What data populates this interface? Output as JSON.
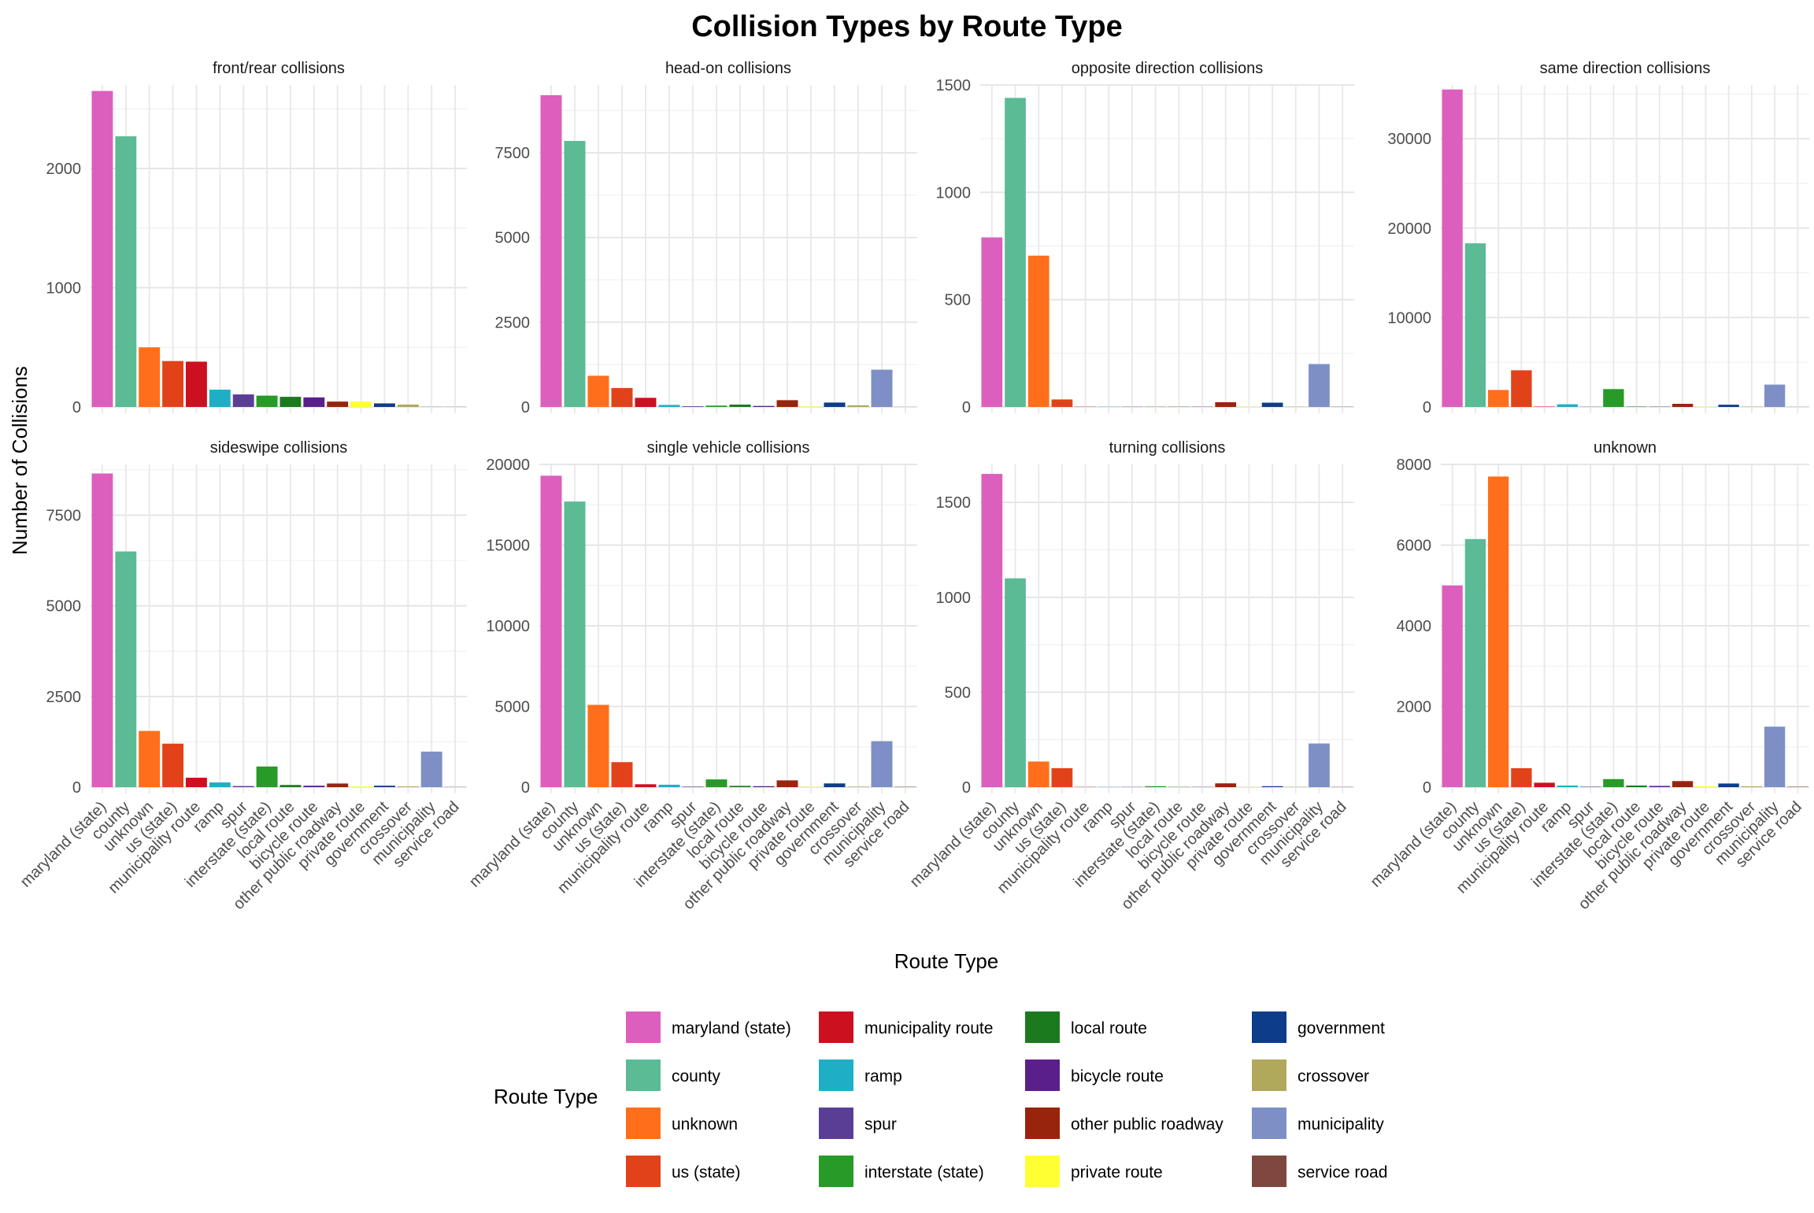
{
  "chart_data": {
    "type": "bar",
    "title": "Collision Types by Route Type",
    "xlabel": "Route Type",
    "ylabel": "Number of Collisions",
    "legend_title": "Route Type",
    "legend_position": "bottom",
    "grid": true,
    "categories": [
      "maryland (state)",
      "county",
      "unknown",
      "us (state)",
      "municipality route",
      "ramp",
      "spur",
      "interstate (state)",
      "local route",
      "bicycle route",
      "other public roadway",
      "private route",
      "government",
      "crossover",
      "municipality",
      "service road"
    ],
    "colors": [
      "#DC5FBD",
      "#5ABB95",
      "#FF6E1A",
      "#E1421A",
      "#CC1020",
      "#1EAFC6",
      "#5A3E96",
      "#279A27",
      "#1B7A1D",
      "#5A1F8A",
      "#98240C",
      "#FFFF33",
      "#0D3D8A",
      "#B0A85A",
      "#7D8FC5",
      "#7E4840"
    ],
    "panels": [
      {
        "name": "front/rear collisions",
        "ylim": [
          0,
          2700
        ],
        "ticks": [
          0,
          1000,
          2000
        ],
        "values": [
          2650,
          2270,
          500,
          385,
          380,
          145,
          105,
          95,
          85,
          80,
          45,
          45,
          30,
          20,
          2,
          1
        ]
      },
      {
        "name": "head-on collisions",
        "ylim": [
          0,
          9500
        ],
        "ticks": [
          0,
          2500,
          5000,
          7500
        ],
        "values": [
          9200,
          7850,
          920,
          560,
          270,
          60,
          20,
          40,
          70,
          30,
          200,
          10,
          130,
          50,
          1100,
          2
        ]
      },
      {
        "name": "opposite direction collisions",
        "ylim": [
          0,
          1500
        ],
        "ticks": [
          0,
          500,
          1000,
          1500
        ],
        "values": [
          790,
          1440,
          705,
          35,
          1,
          1,
          1,
          1,
          1,
          1,
          22,
          1,
          20,
          1,
          200,
          1
        ]
      },
      {
        "name": "same direction collisions",
        "ylim": [
          0,
          36000
        ],
        "ticks": [
          0,
          10000,
          20000,
          30000
        ],
        "values": [
          35500,
          18300,
          1900,
          4100,
          40,
          300,
          20,
          2000,
          40,
          30,
          350,
          20,
          250,
          30,
          2500,
          10
        ]
      },
      {
        "name": "sideswipe collisions",
        "ylim": [
          0,
          8900
        ],
        "ticks": [
          0,
          2500,
          5000,
          7500
        ],
        "values": [
          8650,
          6500,
          1550,
          1200,
          260,
          130,
          30,
          570,
          60,
          40,
          100,
          20,
          40,
          20,
          980,
          5
        ]
      },
      {
        "name": "single vehicle collisions",
        "ylim": [
          0,
          20000
        ],
        "ticks": [
          0,
          5000,
          10000,
          15000,
          20000
        ],
        "values": [
          19300,
          17700,
          5100,
          1550,
          180,
          150,
          30,
          480,
          80,
          60,
          420,
          20,
          230,
          30,
          2850,
          20
        ]
      },
      {
        "name": "turning collisions",
        "ylim": [
          0,
          1700
        ],
        "ticks": [
          0,
          500,
          1000,
          1500
        ],
        "values": [
          1650,
          1100,
          135,
          100,
          1,
          1,
          1,
          5,
          1,
          1,
          20,
          1,
          5,
          1,
          230,
          1
        ]
      },
      {
        "name": "unknown",
        "ylim": [
          0,
          8000
        ],
        "ticks": [
          0,
          2000,
          4000,
          6000,
          8000
        ],
        "values": [
          5000,
          6150,
          7700,
          470,
          110,
          40,
          10,
          200,
          40,
          30,
          150,
          20,
          90,
          20,
          1500,
          10
        ]
      }
    ]
  }
}
